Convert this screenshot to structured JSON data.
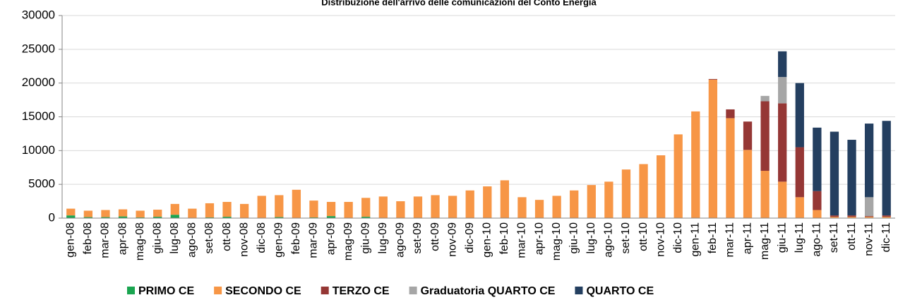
{
  "chart_data": {
    "type": "stacked_bar",
    "title": "Distribuzione dell'arrivo delle comunicazioni del Conto Energia",
    "categories": [
      "gen-08",
      "feb-08",
      "mar-08",
      "apr-08",
      "mag-08",
      "giu-08",
      "lug-08",
      "ago-08",
      "set-08",
      "ott-08",
      "nov-08",
      "dic-08",
      "gen-09",
      "feb-09",
      "mar-09",
      "apr-09",
      "mag-09",
      "giu-09",
      "lug-09",
      "ago-09",
      "set-09",
      "ott-09",
      "nov-09",
      "dic-09",
      "gen-10",
      "feb-10",
      "mar-10",
      "apr-10",
      "mag-10",
      "giu-10",
      "lug-10",
      "ago-10",
      "set-10",
      "ott-10",
      "nov-10",
      "dic-10",
      "gen-11",
      "feb-11",
      "mar-11",
      "apr-11",
      "mag-11",
      "giu-11",
      "lug-11",
      "ago-11",
      "set-11",
      "ott-11",
      "nov-11",
      "dic-11"
    ],
    "series": [
      {
        "name": "PRIMO CE",
        "color": "#1aa550",
        "values": [
          400,
          150,
          150,
          250,
          100,
          200,
          500,
          50,
          100,
          200,
          50,
          50,
          150,
          50,
          100,
          300,
          50,
          200,
          0,
          0,
          0,
          0,
          0,
          0,
          0,
          0,
          0,
          0,
          0,
          0,
          0,
          0,
          0,
          0,
          0,
          0,
          0,
          0,
          0,
          0,
          0,
          0,
          0,
          0,
          0,
          0,
          0,
          0
        ]
      },
      {
        "name": "SECONDO CE",
        "color": "#f79646",
        "values": [
          1000,
          950,
          1050,
          1050,
          1000,
          1050,
          1600,
          1350,
          2100,
          2200,
          2050,
          3250,
          3250,
          4150,
          2500,
          2100,
          2350,
          2800,
          3200,
          2500,
          3200,
          3400,
          3300,
          4100,
          4700,
          5600,
          3100,
          2700,
          3300,
          4100,
          4900,
          5400,
          7200,
          8000,
          9300,
          12400,
          15800,
          20500,
          14800,
          10100,
          7000,
          5400,
          3100,
          1200,
          200,
          200,
          200,
          200
        ]
      },
      {
        "name": "TERZO CE",
        "color": "#953735",
        "values": [
          0,
          0,
          0,
          0,
          0,
          0,
          0,
          0,
          0,
          0,
          0,
          0,
          0,
          0,
          0,
          0,
          0,
          0,
          0,
          0,
          0,
          0,
          0,
          0,
          0,
          0,
          0,
          0,
          0,
          0,
          0,
          0,
          0,
          0,
          0,
          0,
          0,
          100,
          1300,
          4200,
          10300,
          11600,
          7400,
          2800,
          200,
          200,
          100,
          200
        ]
      },
      {
        "name": "Graduatoria QUARTO CE",
        "color": "#a6a6a6",
        "values": [
          0,
          0,
          0,
          0,
          0,
          0,
          0,
          0,
          0,
          0,
          0,
          0,
          0,
          0,
          0,
          0,
          0,
          0,
          0,
          0,
          0,
          0,
          0,
          0,
          0,
          0,
          0,
          0,
          0,
          0,
          0,
          0,
          0,
          0,
          0,
          0,
          0,
          0,
          0,
          0,
          800,
          3900,
          0,
          0,
          0,
          0,
          2800,
          0
        ]
      },
      {
        "name": "QUARTO CE",
        "color": "#243f60",
        "values": [
          0,
          0,
          0,
          0,
          0,
          0,
          0,
          0,
          0,
          0,
          0,
          0,
          0,
          0,
          0,
          0,
          0,
          0,
          0,
          0,
          0,
          0,
          0,
          0,
          0,
          0,
          0,
          0,
          0,
          0,
          0,
          0,
          0,
          0,
          0,
          0,
          0,
          0,
          0,
          0,
          0,
          3800,
          9500,
          9400,
          12400,
          11200,
          10900,
          14000
        ]
      }
    ],
    "ylim": [
      0,
      30000
    ],
    "yticks": [
      0,
      5000,
      10000,
      15000,
      20000,
      25000,
      30000
    ],
    "grid": true
  }
}
